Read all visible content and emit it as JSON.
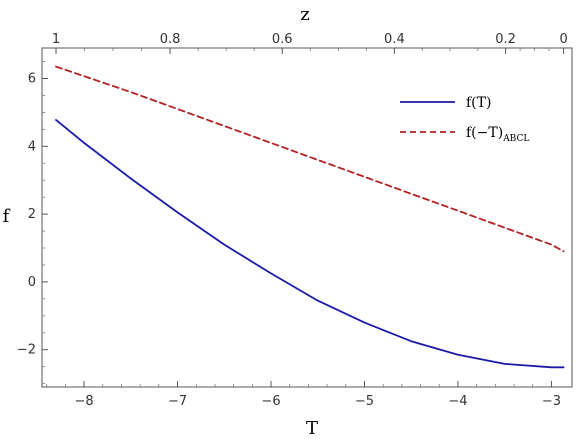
{
  "chart_data": {
    "type": "line",
    "xlabel": "T",
    "ylabel": "f",
    "top_axis_label": "z",
    "xlim": [
      -8.45,
      -2.78
    ],
    "ylim": [
      -3.1,
      6.9
    ],
    "x_ticks": [
      -8,
      -7,
      -6,
      -5,
      -4,
      -3
    ],
    "x_tick_labels": [
      "−8",
      "−7",
      "−6",
      "−5",
      "−4",
      "−3"
    ],
    "y_ticks": [
      -2,
      0,
      2,
      4,
      6
    ],
    "y_tick_labels": [
      "−2",
      "0",
      "2",
      "4",
      "6"
    ],
    "top_ticks_T": [
      -8.3,
      -7.08,
      -5.88,
      -4.68,
      -3.49,
      -2.87
    ],
    "top_tick_labels": [
      "1",
      "0.8",
      "0.6",
      "0.4",
      "0.2",
      "0"
    ],
    "legend_position": "top-right",
    "series": [
      {
        "name": "f(T)",
        "name_subscript": "",
        "style": "solid",
        "color": "#1a1aa6",
        "x": [
          -8.3,
          -8.0,
          -7.5,
          -7.0,
          -6.5,
          -6.0,
          -5.5,
          -5.0,
          -4.5,
          -4.0,
          -3.5,
          -3.0,
          -2.87
        ],
        "y": [
          4.78,
          4.1,
          3.05,
          2.05,
          1.1,
          0.25,
          -0.55,
          -1.2,
          -1.75,
          -2.15,
          -2.42,
          -2.52,
          -2.52
        ]
      },
      {
        "name": "f(−T)",
        "name_subscript": "ABCL",
        "style": "dashed",
        "color": "#b22222",
        "x": [
          -8.3,
          -7.5,
          -7.0,
          -6.5,
          -6.0,
          -5.5,
          -5.0,
          -4.5,
          -4.0,
          -3.5,
          -3.0,
          -2.87
        ],
        "y": [
          6.35,
          5.6,
          5.1,
          4.6,
          4.1,
          3.6,
          3.1,
          2.6,
          2.1,
          1.6,
          1.1,
          0.9
        ]
      }
    ]
  }
}
